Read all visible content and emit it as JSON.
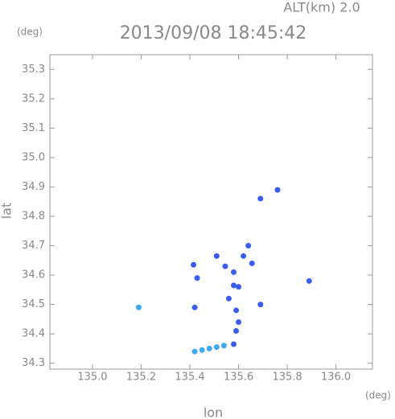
{
  "chart_data": {
    "type": "scatter",
    "title": "2013/09/08 18:45:42",
    "subtitle": "ALT(km) 2.0",
    "y_unit": "(deg)",
    "x_unit": "(deg)",
    "xlabel": "lon",
    "ylabel": "lat",
    "x": [
      135.19,
      135.42,
      135.415,
      135.43,
      135.89,
      135.76,
      135.69,
      135.545,
      135.58,
      135.58,
      135.6,
      135.56,
      135.59,
      135.6,
      135.59,
      135.62,
      135.64,
      135.655,
      135.69,
      135.51,
      135.42,
      135.45,
      135.48,
      135.51,
      135.54,
      135.58
    ],
    "y": [
      34.49,
      34.49,
      34.635,
      34.59,
      34.58,
      34.89,
      34.86,
      34.63,
      34.61,
      34.565,
      34.56,
      34.52,
      34.48,
      34.44,
      34.41,
      34.665,
      34.7,
      34.64,
      34.5,
      34.665,
      34.34,
      34.345,
      34.35,
      34.355,
      34.36,
      34.365
    ],
    "point_colors": [
      "#3fa9f0",
      "#3a5cf0",
      "#3a5cf0",
      "#3a5cf0",
      "#3a5cf0",
      "#3a5cf0",
      "#3a5cf0",
      "#3a5cf0",
      "#3a5cf0",
      "#3a5cf0",
      "#3a5cf0",
      "#3a5cf0",
      "#3a5cf0",
      "#3a5cf0",
      "#3a5cf0",
      "#3a5cf0",
      "#3a5cf0",
      "#3a5cf0",
      "#3a5cf0",
      "#3a5cf0",
      "#3fa9f0",
      "#3fa9f0",
      "#3fa9f0",
      "#3fa9f0",
      "#3fa9f0",
      "#3a5cf0"
    ],
    "xlim": [
      134.825,
      136.15
    ],
    "ylim": [
      34.28,
      35.35
    ],
    "xticks": [
      {
        "value": 135,
        "label": "135.0"
      },
      135.2,
      135.4,
      135.6,
      135.8,
      {
        "value": 136,
        "label": "136.0"
      }
    ],
    "yticks": [
      34.3,
      34.4,
      34.5,
      34.6,
      34.7,
      34.8,
      34.9,
      {
        "value": 35,
        "label": "35.0"
      },
      35.1,
      35.2,
      35.3
    ],
    "grid": false
  }
}
